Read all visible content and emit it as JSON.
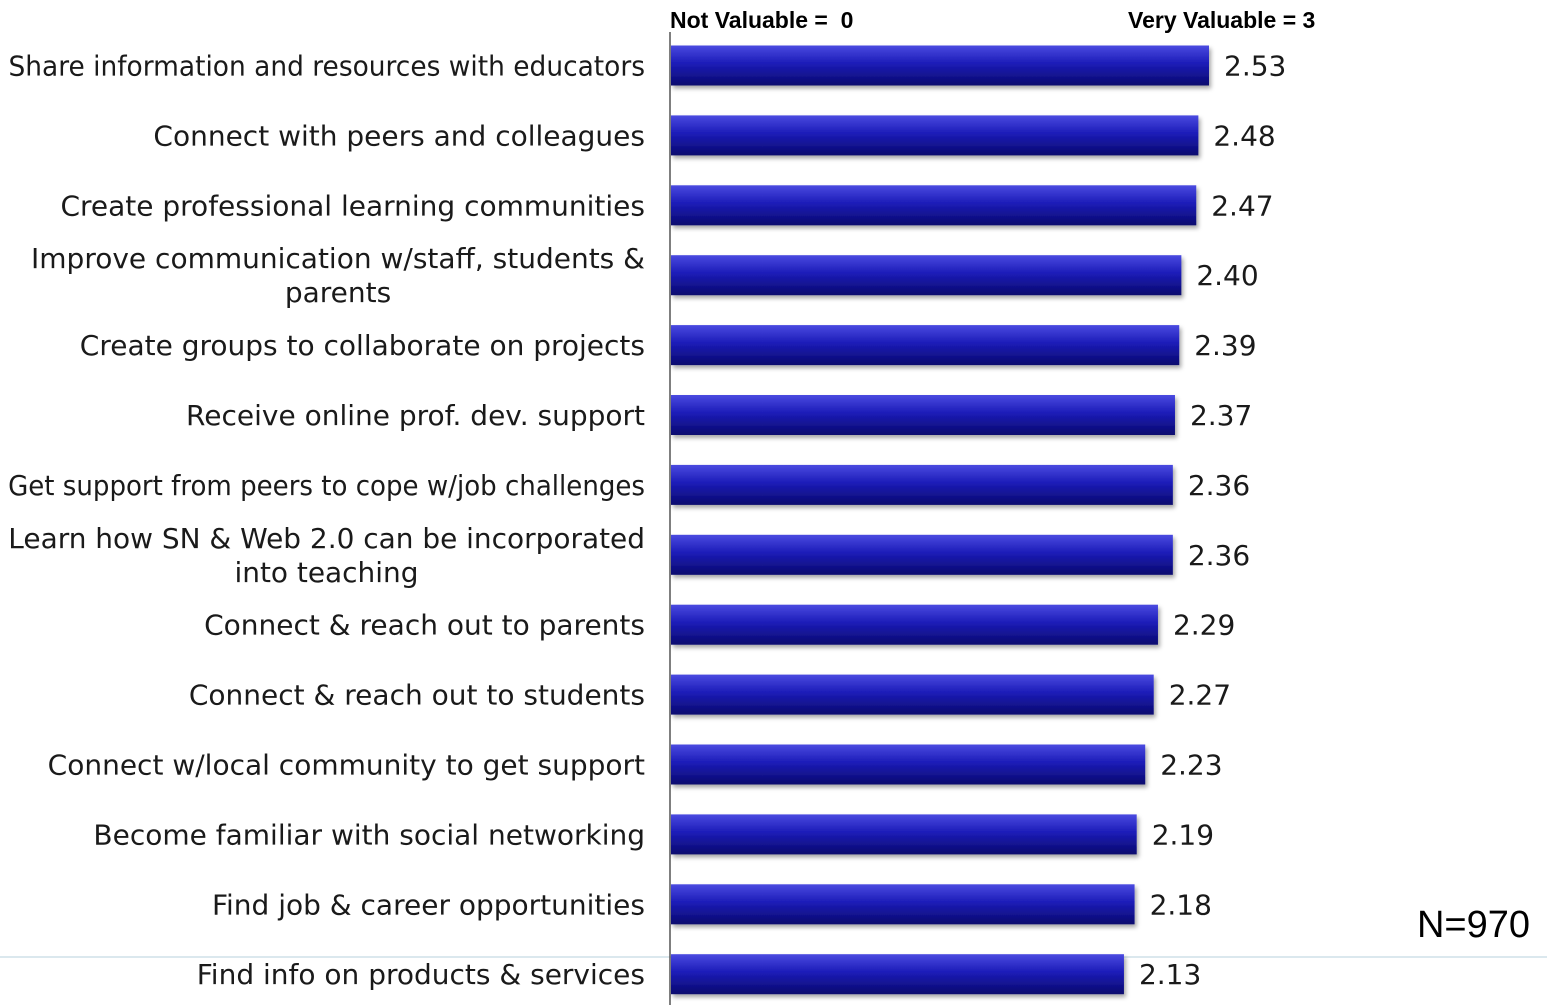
{
  "colors": {
    "bar_top": "#4a4ae0",
    "bar_mid": "#1c1cb8",
    "bar_bottom": "#0a0a6e",
    "axis": "#555555",
    "footer_line": "#cfe0e8"
  },
  "chart_data": {
    "type": "bar",
    "orientation": "horizontal",
    "scale_min_label": "Not Valuable =  0",
    "scale_max_label": "Very Valuable = 3",
    "sample_size": "N=970",
    "xlim": [
      0,
      3
    ],
    "categories": [
      [
        "Share information and resources with educators"
      ],
      [
        "Connect with peers and colleagues"
      ],
      [
        "Create professional learning communities"
      ],
      [
        "Improve communication w/staff, students &",
        "parents"
      ],
      [
        "Create groups to collaborate on projects"
      ],
      [
        "Receive online prof. dev. support"
      ],
      [
        "Get support from peers to cope w/job challenges"
      ],
      [
        "Learn how SN & Web 2.0  can be incorporated",
        "into teaching"
      ],
      [
        "Connect & reach out to parents"
      ],
      [
        "Connect & reach out to students"
      ],
      [
        "Connect w/local community to get support"
      ],
      [
        "Become familiar with social networking"
      ],
      [
        "Find job & career opportunities"
      ],
      [
        "Find info on products & services"
      ]
    ],
    "values": [
      2.53,
      2.48,
      2.47,
      2.4,
      2.39,
      2.37,
      2.36,
      2.36,
      2.29,
      2.27,
      2.23,
      2.19,
      2.18,
      2.13
    ],
    "value_labels": [
      "2.53",
      "2.48",
      "2.47",
      "2.40",
      "2.39",
      "2.37",
      "2.36",
      "2.36",
      "2.29",
      "2.27",
      "2.23",
      "2.19",
      "2.18",
      "2.13"
    ]
  }
}
